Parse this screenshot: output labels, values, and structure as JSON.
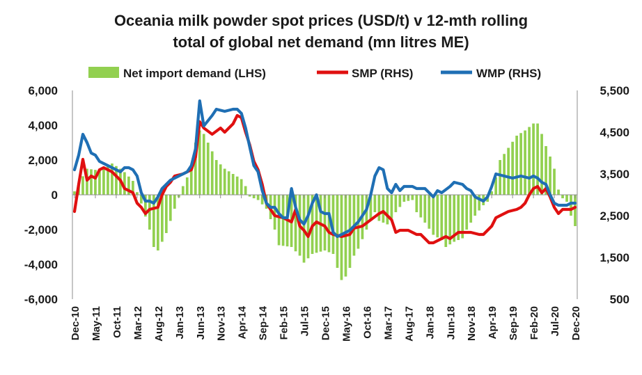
{
  "chart_data": {
    "type": "bar+line",
    "title_line1": "Oceania milk powder spot prices (USD/t) v 12-mth rolling",
    "title_line2": "total of global net demand (mn litres ME)",
    "colors": {
      "bar": "#92d050",
      "smp": "#e01010",
      "wmp": "#1f6fb4"
    },
    "legend": [
      {
        "key": "bar",
        "label": "Net import demand (LHS)"
      },
      {
        "key": "smp",
        "label": "SMP (RHS)"
      },
      {
        "key": "wmp",
        "label": "WMP (RHS)"
      }
    ],
    "y_left": {
      "min": -6000,
      "max": 6000,
      "ticks": [
        "6,000",
        "4,000",
        "2,000",
        "0",
        "-2,000",
        "-4,000",
        "-6,000"
      ]
    },
    "y_right": {
      "min": 500,
      "max": 5500,
      "ticks": [
        "5,500",
        "4,500",
        "3,500",
        "2,500",
        "1,500",
        "500"
      ]
    },
    "x_tick_labels": [
      "Dec-10",
      "May-11",
      "Oct-11",
      "Mar-12",
      "Aug-12",
      "Jan-13",
      "Jun-13",
      "Nov-13",
      "Apr-14",
      "Sep-14",
      "Feb-15",
      "Jul-15",
      "Dec-15",
      "May-16",
      "Oct-16",
      "Mar-17",
      "Aug-17",
      "Jan-18",
      "Jun-18",
      "Nov-18",
      "Apr-19",
      "Sep-19",
      "Feb-20",
      "Jul-20",
      "Dec-20"
    ],
    "x_start": "Dec-10",
    "months": 121,
    "net_import_demand_knots": [
      [
        0,
        200
      ],
      [
        3,
        1500
      ],
      [
        6,
        1400
      ],
      [
        9,
        1800
      ],
      [
        11,
        1500
      ],
      [
        12,
        1300
      ],
      [
        14,
        800
      ],
      [
        16,
        -500
      ],
      [
        18,
        -2000
      ],
      [
        19,
        -3000
      ],
      [
        20,
        -3200
      ],
      [
        22,
        -2200
      ],
      [
        24,
        -800
      ],
      [
        26,
        500
      ],
      [
        28,
        1500
      ],
      [
        29,
        3000
      ],
      [
        30,
        3700
      ],
      [
        31,
        3500
      ],
      [
        32,
        3000
      ],
      [
        34,
        2000
      ],
      [
        36,
        1500
      ],
      [
        38,
        1200
      ],
      [
        40,
        900
      ],
      [
        41,
        500
      ],
      [
        42,
        -100
      ],
      [
        44,
        -300
      ],
      [
        46,
        -800
      ],
      [
        48,
        -2000
      ],
      [
        49,
        -2900
      ],
      [
        52,
        -3000
      ],
      [
        54,
        -3500
      ],
      [
        55,
        -3900
      ],
      [
        57,
        -3400
      ],
      [
        60,
        -3200
      ],
      [
        62,
        -3400
      ],
      [
        63,
        -4200
      ],
      [
        64,
        -4900
      ],
      [
        65,
        -4700
      ],
      [
        66,
        -4200
      ],
      [
        67,
        -3500
      ],
      [
        68,
        -3100
      ],
      [
        70,
        -2000
      ],
      [
        72,
        -1000
      ],
      [
        73,
        -1500
      ],
      [
        75,
        -1700
      ],
      [
        77,
        -1000
      ],
      [
        79,
        -400
      ],
      [
        81,
        -300
      ],
      [
        82,
        -1000
      ],
      [
        84,
        -1600
      ],
      [
        86,
        -2300
      ],
      [
        88,
        -2600
      ],
      [
        89,
        -3000
      ],
      [
        91,
        -2700
      ],
      [
        93,
        -2500
      ],
      [
        94,
        -2000
      ],
      [
        96,
        -1200
      ],
      [
        98,
        -600
      ],
      [
        99,
        -400
      ],
      [
        100,
        200
      ],
      [
        101,
        1000
      ],
      [
        102,
        2000
      ],
      [
        104,
        2700
      ],
      [
        106,
        3400
      ],
      [
        108,
        3700
      ],
      [
        110,
        4100
      ],
      [
        111,
        4100
      ],
      [
        112,
        3500
      ],
      [
        113,
        2800
      ],
      [
        114,
        2200
      ],
      [
        115,
        1500
      ],
      [
        116,
        300
      ],
      [
        117,
        -200
      ],
      [
        118,
        -400
      ],
      [
        119,
        -1200
      ],
      [
        120,
        -1800
      ]
    ],
    "smp_knots": [
      [
        0,
        2600
      ],
      [
        1,
        3250
      ],
      [
        2,
        3850
      ],
      [
        3,
        3350
      ],
      [
        4,
        3450
      ],
      [
        5,
        3400
      ],
      [
        6,
        3600
      ],
      [
        7,
        3650
      ],
      [
        9,
        3550
      ],
      [
        11,
        3350
      ],
      [
        12,
        3150
      ],
      [
        14,
        3050
      ],
      [
        15,
        2800
      ],
      [
        16,
        2700
      ],
      [
        17,
        2550
      ],
      [
        18,
        2650
      ],
      [
        20,
        2700
      ],
      [
        21,
        3000
      ],
      [
        22,
        3200
      ],
      [
        23,
        3300
      ],
      [
        24,
        3450
      ],
      [
        26,
        3500
      ],
      [
        28,
        3600
      ],
      [
        29,
        3900
      ],
      [
        30,
        4750
      ],
      [
        31,
        4600
      ],
      [
        33,
        4450
      ],
      [
        35,
        4600
      ],
      [
        36,
        4500
      ],
      [
        38,
        4700
      ],
      [
        39,
        4900
      ],
      [
        40,
        4850
      ],
      [
        41,
        4500
      ],
      [
        42,
        4200
      ],
      [
        43,
        3800
      ],
      [
        44,
        3600
      ],
      [
        45,
        3250
      ],
      [
        46,
        2800
      ],
      [
        47,
        2650
      ],
      [
        48,
        2500
      ],
      [
        50,
        2450
      ],
      [
        52,
        2350
      ],
      [
        53,
        2650
      ],
      [
        54,
        2250
      ],
      [
        55,
        2150
      ],
      [
        56,
        2000
      ],
      [
        57,
        2250
      ],
      [
        58,
        2350
      ],
      [
        59,
        2300
      ],
      [
        60,
        2250
      ],
      [
        61,
        2100
      ],
      [
        62,
        2050
      ],
      [
        64,
        2000
      ],
      [
        66,
        2050
      ],
      [
        67,
        2200
      ],
      [
        69,
        2250
      ],
      [
        71,
        2400
      ],
      [
        73,
        2550
      ],
      [
        74,
        2600
      ],
      [
        75,
        2500
      ],
      [
        76,
        2400
      ],
      [
        77,
        2100
      ],
      [
        78,
        2150
      ],
      [
        80,
        2150
      ],
      [
        82,
        2050
      ],
      [
        83,
        2050
      ],
      [
        84,
        1950
      ],
      [
        85,
        1850
      ],
      [
        86,
        1850
      ],
      [
        88,
        1950
      ],
      [
        89,
        2000
      ],
      [
        90,
        1950
      ],
      [
        92,
        2100
      ],
      [
        93,
        2100
      ],
      [
        95,
        2100
      ],
      [
        97,
        2050
      ],
      [
        98,
        2050
      ],
      [
        99,
        2150
      ],
      [
        100,
        2250
      ],
      [
        101,
        2450
      ],
      [
        103,
        2550
      ],
      [
        104,
        2600
      ],
      [
        106,
        2650
      ],
      [
        107,
        2700
      ],
      [
        108,
        2800
      ],
      [
        109,
        3000
      ],
      [
        110,
        3150
      ],
      [
        111,
        3200
      ],
      [
        112,
        3050
      ],
      [
        113,
        3150
      ],
      [
        114,
        2950
      ],
      [
        115,
        2700
      ],
      [
        116,
        2550
      ],
      [
        117,
        2650
      ],
      [
        118,
        2650
      ],
      [
        119,
        2650
      ],
      [
        120,
        2700
      ]
    ],
    "wmp_knots": [
      [
        0,
        3600
      ],
      [
        1,
        3950
      ],
      [
        2,
        4450
      ],
      [
        3,
        4250
      ],
      [
        4,
        4000
      ],
      [
        5,
        3950
      ],
      [
        6,
        3800
      ],
      [
        8,
        3700
      ],
      [
        9,
        3650
      ],
      [
        10,
        3600
      ],
      [
        11,
        3550
      ],
      [
        12,
        3650
      ],
      [
        13,
        3650
      ],
      [
        14,
        3600
      ],
      [
        15,
        3450
      ],
      [
        16,
        3050
      ],
      [
        17,
        2850
      ],
      [
        18,
        2850
      ],
      [
        19,
        2800
      ],
      [
        20,
        2950
      ],
      [
        21,
        3150
      ],
      [
        22,
        3250
      ],
      [
        23,
        3350
      ],
      [
        24,
        3400
      ],
      [
        25,
        3450
      ],
      [
        27,
        3550
      ],
      [
        28,
        3700
      ],
      [
        29,
        4100
      ],
      [
        30,
        5250
      ],
      [
        31,
        4650
      ],
      [
        33,
        4900
      ],
      [
        34,
        5050
      ],
      [
        36,
        5000
      ],
      [
        38,
        5050
      ],
      [
        39,
        5050
      ],
      [
        40,
        4950
      ],
      [
        41,
        4600
      ],
      [
        42,
        4150
      ],
      [
        43,
        3700
      ],
      [
        44,
        3550
      ],
      [
        45,
        3100
      ],
      [
        46,
        2800
      ],
      [
        47,
        2700
      ],
      [
        48,
        2700
      ],
      [
        49,
        2550
      ],
      [
        50,
        2450
      ],
      [
        51,
        2450
      ],
      [
        52,
        3150
      ],
      [
        53,
        2700
      ],
      [
        54,
        2400
      ],
      [
        55,
        2300
      ],
      [
        56,
        2500
      ],
      [
        57,
        2800
      ],
      [
        58,
        3000
      ],
      [
        59,
        2600
      ],
      [
        60,
        2550
      ],
      [
        61,
        2550
      ],
      [
        62,
        2100
      ],
      [
        63,
        2000
      ],
      [
        64,
        2050
      ],
      [
        66,
        2150
      ],
      [
        68,
        2350
      ],
      [
        70,
        2650
      ],
      [
        71,
        3000
      ],
      [
        72,
        3450
      ],
      [
        73,
        3650
      ],
      [
        74,
        3600
      ],
      [
        75,
        3150
      ],
      [
        76,
        3050
      ],
      [
        77,
        3250
      ],
      [
        78,
        3100
      ],
      [
        79,
        3200
      ],
      [
        81,
        3200
      ],
      [
        82,
        3150
      ],
      [
        84,
        3150
      ],
      [
        85,
        3050
      ],
      [
        86,
        2950
      ],
      [
        87,
        3100
      ],
      [
        88,
        3050
      ],
      [
        90,
        3200
      ],
      [
        91,
        3300
      ],
      [
        93,
        3250
      ],
      [
        94,
        3150
      ],
      [
        95,
        3100
      ],
      [
        96,
        2950
      ],
      [
        97,
        2900
      ],
      [
        98,
        2850
      ],
      [
        99,
        2950
      ],
      [
        100,
        3200
      ],
      [
        101,
        3500
      ],
      [
        103,
        3450
      ],
      [
        105,
        3400
      ],
      [
        107,
        3450
      ],
      [
        109,
        3400
      ],
      [
        110,
        3450
      ],
      [
        111,
        3400
      ],
      [
        112,
        3300
      ],
      [
        113,
        3250
      ],
      [
        114,
        3000
      ],
      [
        115,
        2800
      ],
      [
        116,
        2750
      ],
      [
        117,
        2750
      ],
      [
        118,
        2750
      ],
      [
        119,
        2800
      ],
      [
        120,
        2800
      ]
    ]
  }
}
